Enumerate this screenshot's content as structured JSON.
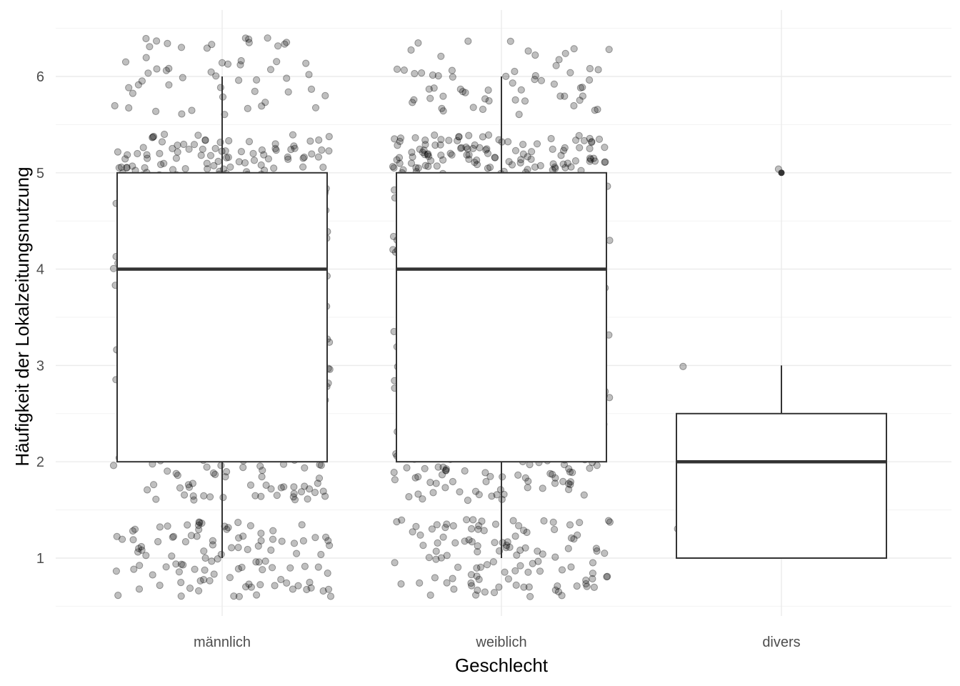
{
  "chart_data": {
    "type": "boxplot",
    "xlabel": "Geschlecht",
    "ylabel": "Häufigkeit der Lokalzeitungsnutzung",
    "ylim": [
      0.5,
      6.5
    ],
    "yticks": [
      1,
      2,
      3,
      4,
      5,
      6
    ],
    "grid": true,
    "jitter_overlay": true,
    "categories": [
      "männlich",
      "weiblich",
      "divers"
    ],
    "boxes": [
      {
        "category": "männlich",
        "whisker_low": 1,
        "q1": 2,
        "median": 4,
        "q3": 5,
        "whisker_high": 6,
        "outliers": []
      },
      {
        "category": "weiblich",
        "whisker_low": 1,
        "q1": 2,
        "median": 4,
        "q3": 5,
        "whisker_high": 6,
        "outliers": []
      },
      {
        "category": "divers",
        "whisker_low": 1,
        "q1": 1,
        "median": 2,
        "q3": 2.5,
        "whisker_high": 3,
        "outliers": [
          5
        ]
      }
    ],
    "value_counts": {
      "männlich": {
        "1": 110,
        "2": 95,
        "3": 130,
        "4": 135,
        "5": 200,
        "6": 55
      },
      "weiblich": {
        "1": 115,
        "2": 120,
        "3": 140,
        "4": 150,
        "5": 230,
        "6": 60
      },
      "divers": {
        "1": 3,
        "2": 2,
        "3": 1,
        "5": 1
      }
    },
    "colors": {
      "point": "#000000",
      "box_line": "#333333",
      "grid": "#ebebeb"
    }
  }
}
